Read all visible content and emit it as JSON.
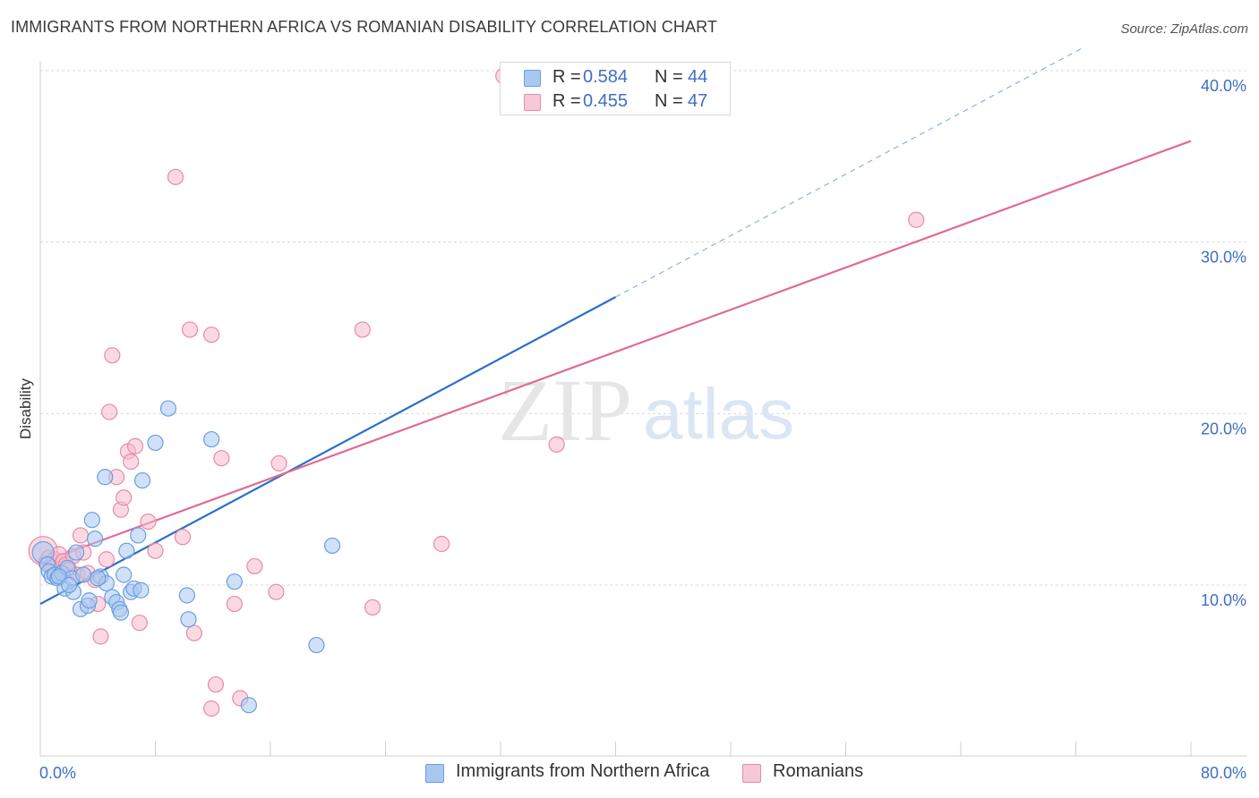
{
  "header": {
    "title": "IMMIGRANTS FROM NORTHERN AFRICA VS ROMANIAN DISABILITY CORRELATION CHART",
    "source": "Source: ZipAtlas.com"
  },
  "watermark": {
    "zip": "ZIP",
    "atlas": "atlas"
  },
  "colors": {
    "blue_fill": "#a9c8f0",
    "blue_stroke": "#6a9ee0",
    "blue_line": "#2a6fcc",
    "pink_fill": "#f7b9cc",
    "pink_stroke": "#e98aa8",
    "pink_line": "#e06b93",
    "tick_label": "#3d6fc4",
    "grid": "#d8d8d8"
  },
  "legend": {
    "blue": {
      "r_label": "R =",
      "r_value": "0.584",
      "n_label": "N =",
      "n_value": "44"
    },
    "pink": {
      "r_label": "R =",
      "r_value": "0.455",
      "n_label": "N =",
      "n_value": "47"
    }
  },
  "bottom_legend": {
    "blue_label": "Immigrants from Northern Africa",
    "pink_label": "Romanians"
  },
  "chart_data": {
    "type": "scatter",
    "title": "IMMIGRANTS FROM NORTHERN AFRICA VS ROMANIAN DISABILITY CORRELATION CHART",
    "xlabel": "",
    "ylabel": "Disability",
    "xlim": [
      0,
      80
    ],
    "ylim": [
      0,
      42
    ],
    "x_tick_labels": [
      {
        "value": 0,
        "label": "0.0%"
      },
      {
        "value": 80,
        "label": "80.0%"
      }
    ],
    "y_tick_labels": [
      {
        "value": 10,
        "label": "10.0%"
      },
      {
        "value": 20,
        "label": "20.0%"
      },
      {
        "value": 30,
        "label": "30.0%"
      },
      {
        "value": 40,
        "label": "40.0%"
      }
    ],
    "x_minor_ticks": [
      0,
      8,
      16,
      24,
      32,
      40,
      48,
      56,
      64,
      72,
      80
    ],
    "series": [
      {
        "name": "Immigrants from Northern Africa",
        "color": "blue",
        "R": 0.584,
        "N": 44,
        "trend": {
          "x0": 0,
          "y0": 8.9,
          "x1": 40,
          "y1": 26.8,
          "dashed_to_x": 80,
          "dashed_to_y": 44.7
        },
        "points": [
          [
            0.2,
            11.9
          ],
          [
            0.5,
            11.2
          ],
          [
            0.6,
            10.8
          ],
          [
            0.8,
            10.5
          ],
          [
            1.0,
            10.6
          ],
          [
            1.2,
            10.4
          ],
          [
            1.5,
            10.7
          ],
          [
            1.7,
            9.8
          ],
          [
            1.9,
            11.0
          ],
          [
            2.2,
            10.4
          ],
          [
            2.3,
            9.6
          ],
          [
            2.5,
            11.9
          ],
          [
            2.8,
            8.6
          ],
          [
            3.0,
            10.6
          ],
          [
            3.3,
            8.8
          ],
          [
            3.4,
            9.1
          ],
          [
            3.6,
            13.8
          ],
          [
            3.8,
            12.7
          ],
          [
            4.2,
            10.5
          ],
          [
            4.5,
            16.3
          ],
          [
            4.6,
            10.1
          ],
          [
            5.0,
            9.3
          ],
          [
            5.3,
            9.0
          ],
          [
            5.5,
            8.6
          ],
          [
            5.6,
            8.4
          ],
          [
            5.8,
            10.6
          ],
          [
            6.0,
            12.0
          ],
          [
            6.3,
            9.6
          ],
          [
            6.5,
            9.8
          ],
          [
            6.8,
            12.9
          ],
          [
            7.0,
            9.7
          ],
          [
            7.1,
            16.1
          ],
          [
            8.0,
            18.3
          ],
          [
            8.9,
            20.3
          ],
          [
            10.2,
            9.4
          ],
          [
            10.3,
            8.0
          ],
          [
            11.9,
            18.5
          ],
          [
            13.5,
            10.2
          ],
          [
            14.5,
            3.0
          ],
          [
            19.2,
            6.5
          ],
          [
            20.3,
            12.3
          ],
          [
            1.3,
            10.5
          ],
          [
            2.0,
            10.0
          ],
          [
            4.0,
            10.4
          ]
        ]
      },
      {
        "name": "Romanians",
        "color": "pink",
        "R": 0.455,
        "N": 47,
        "trend": {
          "x0": 0,
          "y0": 11.3,
          "x1": 80,
          "y1": 35.9
        },
        "points": [
          [
            0.2,
            12.0
          ],
          [
            0.4,
            11.3
          ],
          [
            0.6,
            11.6
          ],
          [
            0.8,
            11.0
          ],
          [
            1.0,
            11.5
          ],
          [
            1.3,
            11.8
          ],
          [
            1.6,
            11.4
          ],
          [
            1.8,
            11.2
          ],
          [
            2.0,
            10.9
          ],
          [
            2.3,
            11.7
          ],
          [
            2.6,
            10.6
          ],
          [
            2.8,
            12.9
          ],
          [
            3.0,
            11.9
          ],
          [
            3.3,
            10.7
          ],
          [
            3.8,
            10.3
          ],
          [
            4.0,
            8.9
          ],
          [
            4.2,
            7.0
          ],
          [
            4.6,
            11.5
          ],
          [
            4.8,
            20.1
          ],
          [
            5.0,
            23.4
          ],
          [
            5.3,
            16.3
          ],
          [
            5.6,
            14.4
          ],
          [
            5.8,
            15.1
          ],
          [
            6.1,
            17.8
          ],
          [
            6.3,
            17.2
          ],
          [
            6.6,
            18.1
          ],
          [
            6.9,
            7.8
          ],
          [
            7.5,
            13.7
          ],
          [
            8.0,
            12.0
          ],
          [
            9.4,
            33.8
          ],
          [
            9.9,
            12.8
          ],
          [
            10.4,
            24.9
          ],
          [
            10.7,
            7.2
          ],
          [
            11.9,
            24.6
          ],
          [
            12.2,
            4.2
          ],
          [
            11.9,
            2.8
          ],
          [
            12.6,
            17.4
          ],
          [
            13.5,
            8.9
          ],
          [
            13.9,
            3.4
          ],
          [
            14.9,
            11.1
          ],
          [
            16.4,
            9.6
          ],
          [
            16.6,
            17.1
          ],
          [
            22.4,
            24.9
          ],
          [
            23.1,
            8.7
          ],
          [
            27.9,
            12.4
          ],
          [
            35.9,
            18.2
          ],
          [
            60.9,
            31.3
          ]
        ],
        "extra_point_top": [
          32.2,
          39.7
        ]
      }
    ]
  }
}
